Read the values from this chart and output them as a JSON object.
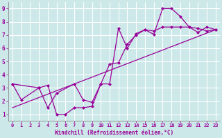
{
  "xlabel": "Windchill (Refroidissement éolien,°C)",
  "bg_color": "#cce8e8",
  "grid_color": "#ffffff",
  "line_color": "#990099",
  "xlim": [
    -0.5,
    23.5
  ],
  "ylim": [
    0.5,
    9.5
  ],
  "xticks": [
    0,
    1,
    2,
    3,
    4,
    5,
    6,
    7,
    8,
    9,
    10,
    11,
    12,
    13,
    14,
    15,
    16,
    17,
    18,
    19,
    20,
    21,
    22,
    23
  ],
  "yticks": [
    1,
    2,
    3,
    4,
    5,
    6,
    7,
    8,
    9
  ],
  "line1_x": [
    0,
    1,
    3,
    4,
    5,
    6,
    7,
    8,
    9,
    10,
    11,
    12,
    13,
    14,
    15,
    16,
    17,
    18,
    19,
    20,
    21,
    22,
    23
  ],
  "line1_y": [
    3.3,
    2.1,
    3.0,
    3.2,
    1.0,
    1.0,
    1.5,
    1.5,
    1.6,
    3.3,
    3.3,
    7.5,
    6.0,
    7.1,
    7.4,
    7.05,
    9.0,
    9.0,
    8.4,
    7.6,
    7.2,
    7.6,
    7.4
  ],
  "line2_x": [
    0,
    3,
    4,
    5,
    7,
    8,
    9,
    10,
    11,
    12,
    13,
    14,
    15,
    16,
    17,
    18,
    19,
    20,
    21,
    22,
    23
  ],
  "line2_y": [
    3.3,
    3.0,
    1.5,
    2.6,
    3.3,
    2.1,
    1.9,
    3.3,
    4.8,
    4.9,
    6.3,
    7.0,
    7.4,
    7.3,
    7.6,
    7.6,
    7.6,
    7.6,
    7.5,
    7.3,
    7.4
  ],
  "line3_x": [
    0,
    23
  ],
  "line3_y": [
    1.5,
    7.4
  ]
}
